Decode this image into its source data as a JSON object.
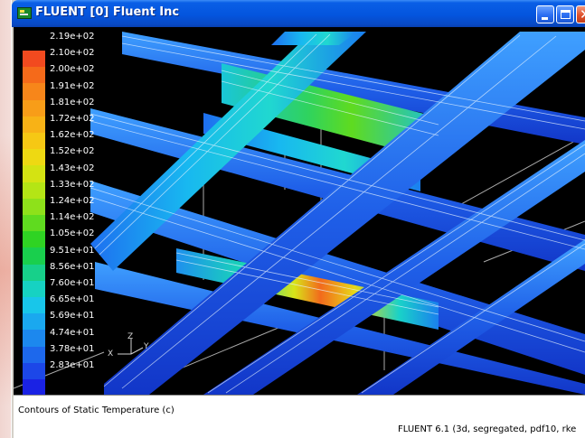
{
  "window": {
    "title": "FLUENT [0] Fluent Inc",
    "icon": "fluent-app-icon",
    "controls": {
      "minimize": "minimize-icon",
      "maximize": "maximize-icon",
      "close": "close-icon"
    }
  },
  "colorbar": {
    "labels": [
      "2.19e+02",
      "2.10e+02",
      "2.00e+02",
      "1.91e+02",
      "1.81e+02",
      "1.72e+02",
      "1.62e+02",
      "1.52e+02",
      "1.43e+02",
      "1.33e+02",
      "1.24e+02",
      "1.14e+02",
      "1.05e+02",
      "9.51e+01",
      "8.56e+01",
      "7.60e+01",
      "6.65e+01",
      "5.69e+01",
      "4.74e+01",
      "3.78e+01",
      "2.83e+01"
    ],
    "colors": [
      "#f24a1f",
      "#f56a1a",
      "#f7861a",
      "#f89d18",
      "#f8b216",
      "#f6c814",
      "#eed912",
      "#d4e312",
      "#b4e515",
      "#8ee11a",
      "#5fdb1f",
      "#2fd323",
      "#19cf4d",
      "#17d08a",
      "#16d2c2",
      "#18c6ea",
      "#1aa8ef",
      "#1c88ee",
      "#1d68ec",
      "#1c47e8",
      "#1a22e4"
    ]
  },
  "axes": {
    "x": "X",
    "y": "Y",
    "z": "Z"
  },
  "caption": {
    "title": "Contours of Static Temperature (c)",
    "solver": "FLUENT 6.1 (3d, segregated, pdf10, rke"
  }
}
